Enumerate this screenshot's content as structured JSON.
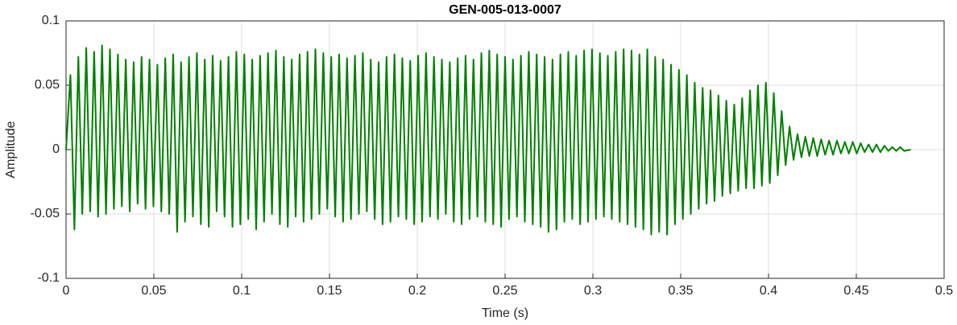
{
  "chart_data": {
    "type": "line",
    "title": "GEN-005-013-0007",
    "x_label": "Time (s)",
    "y_label": "Amplitude",
    "xlim": [
      0,
      0.5
    ],
    "xticks": [
      0,
      0.05,
      0.1,
      0.15,
      0.2,
      0.25,
      0.3,
      0.35,
      0.4,
      0.45,
      0.5
    ],
    "ylim": [
      -0.1,
      0.1
    ],
    "yticks": [
      -0.1,
      -0.05,
      0,
      0.05,
      0.1
    ],
    "grid": true,
    "x": [
      0,
      0.0025,
      0.00475,
      0.007,
      0.00925,
      0.0115,
      0.01375,
      0.016,
      0.01825,
      0.0205,
      0.02275,
      0.025,
      0.02725,
      0.0295,
      0.03175,
      0.034,
      0.03625,
      0.0385,
      0.04075,
      0.043,
      0.04525,
      0.0475,
      0.04975,
      0.052,
      0.05425,
      0.0565,
      0.05875,
      0.061,
      0.06325,
      0.0655,
      0.06775,
      0.07,
      0.07225,
      0.0745,
      0.07675,
      0.079,
      0.08125,
      0.0835,
      0.08575,
      0.088,
      0.09025,
      0.0925,
      0.09475,
      0.097,
      0.09925,
      0.1015,
      0.10375,
      0.106,
      0.10825,
      0.1105,
      0.11275,
      0.115,
      0.11725,
      0.1195,
      0.12175,
      0.124,
      0.12625,
      0.1285,
      0.13075,
      0.133,
      0.13525,
      0.1375,
      0.13975,
      0.142,
      0.14425,
      0.1465,
      0.14875,
      0.151,
      0.15325,
      0.1555,
      0.15775,
      0.16,
      0.16225,
      0.1645,
      0.16675,
      0.169,
      0.17125,
      0.1735,
      0.17575,
      0.178,
      0.18025,
      0.1825,
      0.18475,
      0.187,
      0.18925,
      0.1915,
      0.19375,
      0.196,
      0.19825,
      0.2005,
      0.20275,
      0.205,
      0.20725,
      0.2095,
      0.21175,
      0.214,
      0.21625,
      0.2185,
      0.22075,
      0.223,
      0.22525,
      0.2275,
      0.22975,
      0.232,
      0.23425,
      0.2365,
      0.23875,
      0.241,
      0.24325,
      0.2455,
      0.24775,
      0.25,
      0.25225,
      0.2545,
      0.25675,
      0.259,
      0.26125,
      0.2635,
      0.26575,
      0.268,
      0.27025,
      0.2725,
      0.27475,
      0.277,
      0.27925,
      0.2815,
      0.28375,
      0.286,
      0.28825,
      0.2905,
      0.29275,
      0.295,
      0.29725,
      0.2995,
      0.30175,
      0.304,
      0.30625,
      0.3085,
      0.31075,
      0.313,
      0.31525,
      0.3175,
      0.31975,
      0.322,
      0.32425,
      0.3265,
      0.32875,
      0.331,
      0.33325,
      0.3355,
      0.33775,
      0.34,
      0.34225,
      0.3445,
      0.34675,
      0.349,
      0.35125,
      0.3535,
      0.35575,
      0.358,
      0.36025,
      0.3625,
      0.36475,
      0.367,
      0.36925,
      0.3715,
      0.37375,
      0.376,
      0.37825,
      0.3805,
      0.38275,
      0.385,
      0.38725,
      0.3895,
      0.39175,
      0.394,
      0.39625,
      0.3985,
      0.40075,
      0.403,
      0.40525,
      0.4075,
      0.40975,
      0.412,
      0.41425,
      0.4165,
      0.41875,
      0.421,
      0.42325,
      0.4255,
      0.42775,
      0.43,
      0.43225,
      0.4345,
      0.43675,
      0.439,
      0.44125,
      0.4435,
      0.44575,
      0.448,
      0.45025,
      0.4525,
      0.45475,
      0.457,
      0.45925,
      0.4615,
      0.46375,
      0.466,
      0.46825,
      0.4705,
      0.47275,
      0.475,
      0.47725,
      0.481
    ],
    "series": [
      {
        "name": "Amplitude",
        "color": "#008000",
        "values": [
          0,
          0.058,
          -0.062,
          0.072,
          -0.05,
          0.079,
          -0.048,
          0.076,
          -0.052,
          0.081,
          -0.05,
          0.078,
          -0.046,
          0.074,
          -0.044,
          0.07,
          -0.048,
          0.068,
          -0.042,
          0.072,
          -0.046,
          0.07,
          -0.044,
          0.066,
          -0.048,
          0.071,
          -0.05,
          0.074,
          -0.064,
          0.068,
          -0.056,
          0.072,
          -0.052,
          0.075,
          -0.058,
          0.07,
          -0.06,
          0.073,
          -0.048,
          0.069,
          -0.052,
          0.072,
          -0.06,
          0.076,
          -0.058,
          0.074,
          -0.054,
          0.07,
          -0.062,
          0.073,
          -0.056,
          0.075,
          -0.05,
          0.077,
          -0.058,
          0.072,
          -0.06,
          0.07,
          -0.052,
          0.074,
          -0.056,
          0.076,
          -0.054,
          0.078,
          -0.05,
          0.075,
          -0.046,
          0.072,
          -0.052,
          0.074,
          -0.056,
          0.071,
          -0.054,
          0.073,
          -0.05,
          0.075,
          -0.048,
          0.07,
          -0.054,
          0.068,
          -0.058,
          0.072,
          -0.056,
          0.074,
          -0.052,
          0.071,
          -0.054,
          0.069,
          -0.058,
          0.073,
          -0.056,
          0.075,
          -0.052,
          0.072,
          -0.054,
          0.07,
          -0.05,
          0.068,
          -0.056,
          0.071,
          -0.058,
          0.073,
          -0.054,
          0.07,
          -0.052,
          0.075,
          -0.056,
          0.077,
          -0.058,
          0.074,
          -0.06,
          0.072,
          -0.054,
          0.07,
          -0.052,
          0.073,
          -0.056,
          0.076,
          -0.058,
          0.074,
          -0.06,
          0.072,
          -0.064,
          0.07,
          -0.062,
          0.074,
          -0.056,
          0.076,
          -0.054,
          0.073,
          -0.058,
          0.077,
          -0.056,
          0.078,
          -0.054,
          0.075,
          -0.052,
          0.073,
          -0.054,
          0.076,
          -0.056,
          0.078,
          -0.058,
          0.077,
          -0.06,
          0.074,
          -0.062,
          0.078,
          -0.066,
          0.072,
          -0.064,
          0.07,
          -0.066,
          0.066,
          -0.058,
          0.062,
          -0.054,
          0.058,
          -0.05,
          0.052,
          -0.046,
          0.048,
          -0.042,
          0.046,
          -0.04,
          0.042,
          -0.036,
          0.038,
          -0.034,
          0.035,
          -0.032,
          0.04,
          -0.03,
          0.046,
          -0.03,
          0.05,
          -0.028,
          0.052,
          -0.026,
          0.044,
          -0.02,
          0.03,
          -0.012,
          0.018,
          -0.008,
          0.012,
          -0.006,
          0.01,
          -0.005,
          0.009,
          -0.005,
          0.008,
          -0.004,
          0.007,
          -0.004,
          0.007,
          -0.003,
          0.006,
          -0.003,
          0.006,
          -0.003,
          0.005,
          -0.002,
          0.004,
          -0.002,
          0.004,
          -0.002,
          0.003,
          -0.001,
          0.002,
          -0.001,
          0.002,
          -0.001,
          0
        ]
      }
    ]
  }
}
